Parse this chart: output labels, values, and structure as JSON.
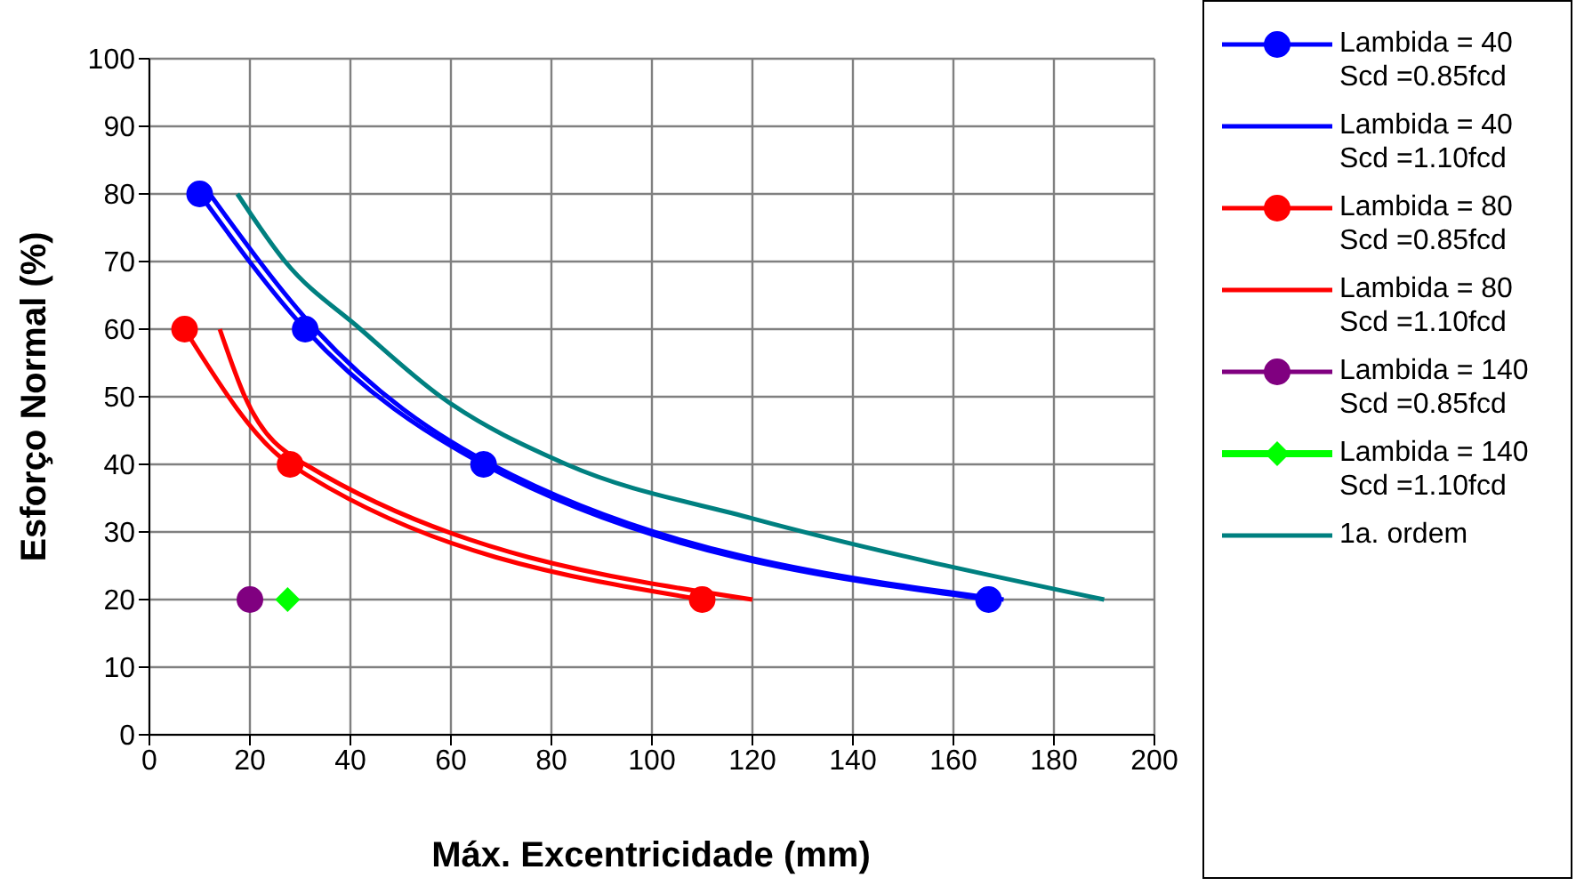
{
  "chart_data": {
    "type": "line",
    "xlabel": "Máx. Excentricidade (mm)",
    "ylabel": "Esforço Normal (%)",
    "xlim": [
      0,
      200
    ],
    "xticks": [
      0,
      20,
      40,
      60,
      80,
      100,
      120,
      140,
      160,
      180,
      200
    ],
    "ylim": [
      0,
      100
    ],
    "yticks": [
      0,
      10,
      20,
      30,
      40,
      50,
      60,
      70,
      80,
      90,
      100
    ],
    "grid": true,
    "legend": "right",
    "line_style": "solid",
    "series": [
      {
        "name": "Lambida = 40\nScd =0.85fcd",
        "color": "#0000ff",
        "marker": "circle",
        "x": [
          10,
          31,
          66.5,
          167
        ],
        "values": [
          80,
          60,
          40,
          20
        ]
      },
      {
        "name": "Lambida = 40\nScd =1.10fcd",
        "color": "#0000ff",
        "marker": "none",
        "x": [
          12,
          33,
          68,
          170
        ],
        "values": [
          80,
          60,
          40,
          20
        ]
      },
      {
        "name": "Lambida = 80\nScd =0.85fcd",
        "color": "#ff0000",
        "marker": "circle",
        "x": [
          7,
          28,
          110
        ],
        "values": [
          60,
          40,
          20
        ]
      },
      {
        "name": "Lambida = 80\nScd =1.10fcd",
        "color": "#ff0000",
        "marker": "none",
        "x": [
          14,
          19,
          31,
          120
        ],
        "values": [
          60,
          50,
          40,
          20
        ]
      },
      {
        "name": "Lambida = 140\nScd =0.85fcd",
        "color": "#800080",
        "marker": "circle",
        "x": [
          20
        ],
        "values": [
          20
        ]
      },
      {
        "name": "Lambida = 140\nScd =1.10fcd",
        "color": "#00ff00",
        "marker": "diamond",
        "x": [
          27.5
        ],
        "values": [
          20
        ]
      },
      {
        "name": "1a. ordem",
        "color": "#008080",
        "marker": "none",
        "x": [
          17.5,
          27,
          42,
          58,
          83,
          120,
          190
        ],
        "values": [
          80,
          70,
          60,
          50,
          40,
          32,
          20
        ]
      }
    ]
  }
}
